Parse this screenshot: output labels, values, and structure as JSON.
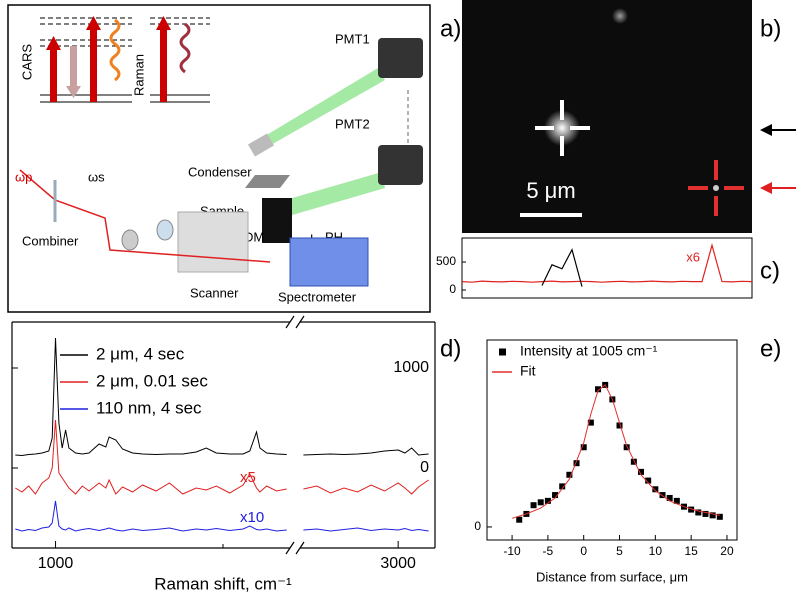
{
  "panel_labels": [
    "a)",
    "b)",
    "c)",
    "d)",
    "e)"
  ],
  "diagram": {
    "cars": "CARS",
    "raman": "Raman",
    "pmt1": "PMT1",
    "pmt2": "PMT2",
    "condenser": "Condenser",
    "sample": "Sample",
    "dm": "DM",
    "lens": "L",
    "pinhole": "PH",
    "combiner": "Combiner",
    "omega_p": "ωp",
    "omega_s": "ωs",
    "scanner": "Scanner",
    "spectrometer": "Spectrometer"
  },
  "image": {
    "scalebar": "5 μm"
  },
  "chart_data": [
    {
      "type": "line",
      "series": [
        {
          "color": "#000000",
          "values": [
            null,
            null,
            null,
            null,
            null,
            null,
            null,
            null,
            80,
            450,
            380,
            720,
            60,
            null,
            null,
            null,
            null,
            null,
            null,
            null,
            null,
            null,
            null,
            null,
            null,
            null,
            null,
            null,
            null,
            null
          ]
        },
        {
          "color": "#e02020",
          "values": [
            150,
            140,
            160,
            150,
            145,
            155,
            150,
            140,
            150,
            160,
            145,
            150,
            155,
            150,
            140,
            150,
            155,
            145,
            150,
            160,
            150,
            145,
            155,
            150,
            150,
            800,
            150,
            145,
            155,
            150
          ]
        }
      ],
      "ylim": [
        -143,
        930
      ],
      "yticks": [
        0,
        500
      ],
      "annotations": [
        "x6"
      ]
    },
    {
      "type": "line",
      "xlabel": "Raman shift, cm⁻¹",
      "x": [
        880,
        900,
        920,
        940,
        960,
        980,
        990,
        1000,
        1010,
        1020,
        1030,
        1040,
        1060,
        1080,
        1100,
        1130,
        1150,
        1160,
        1180,
        1200,
        1230,
        1260,
        1300,
        1340,
        1380,
        1420,
        1450,
        1480,
        1520,
        1560,
        1580,
        1600,
        1610,
        1630,
        1660,
        1690,
        2720,
        2760,
        2800,
        2840,
        2880,
        2920,
        2960,
        3000,
        3020,
        3040,
        3060,
        3090
      ],
      "series": [
        {
          "name": "2 μm, 4 sec",
          "color": "#000000",
          "values": [
            130,
            125,
            135,
            140,
            150,
            170,
            300,
            1300,
            450,
            200,
            380,
            200,
            150,
            140,
            150,
            240,
            210,
            310,
            280,
            190,
            150,
            140,
            135,
            140,
            140,
            160,
            200,
            150,
            140,
            140,
            170,
            360,
            200,
            150,
            140,
            135,
            130,
            135,
            140,
            135,
            140,
            150,
            170,
            180,
            150,
            200,
            130,
            140
          ]
        },
        {
          "name": "2 μm, 0.01 sec",
          "color": "#e02020",
          "values": [
            -200,
            -240,
            -180,
            -260,
            -150,
            -100,
            0,
            480,
            -50,
            -100,
            -150,
            -200,
            -260,
            -180,
            -230,
            -150,
            -200,
            -120,
            -260,
            -190,
            -240,
            -170,
            -230,
            -150,
            -260,
            -200,
            -220,
            -180,
            -250,
            -170,
            -60,
            -200,
            -240,
            -180,
            -230,
            -210,
            -210,
            -180,
            -250,
            -200,
            -240,
            -170,
            -230,
            -150,
            -200,
            -260,
            -190,
            -120
          ]
        },
        {
          "name": "110 nm, 4 sec",
          "color": "#2020e0",
          "values": [
            -610,
            -630,
            -615,
            -625,
            -600,
            -590,
            -550,
            -330,
            -580,
            -610,
            -620,
            -600,
            -630,
            -615,
            -605,
            -625,
            -610,
            -600,
            -620,
            -630,
            -610,
            -625,
            -615,
            -600,
            -630,
            -610,
            -620,
            -605,
            -625,
            -610,
            -580,
            -615,
            -620,
            -610,
            -630,
            -620,
            -620,
            -610,
            -630,
            -615,
            -600,
            -625,
            -610,
            -620,
            -605,
            -625,
            -615,
            -630
          ]
        }
      ],
      "xlim_segments": [
        [
          870,
          1700
        ],
        [
          2710,
          3100
        ]
      ],
      "xticks": [
        1000,
        3000
      ],
      "xminor_ticks": [
        1500
      ],
      "ylim": [
        -800,
        1460
      ],
      "yticks": [
        0,
        1000
      ],
      "annotations": [
        {
          "text": "x5",
          "color": "#e02020"
        },
        {
          "text": "x10",
          "color": "#2020e0"
        }
      ]
    },
    {
      "type": "scatter",
      "xlabel": "Distance from surface, μm",
      "series": [
        {
          "name": "Intensity at 1005 cm⁻¹",
          "type": "scatter",
          "color": "#000000",
          "x": [
            -9,
            -8,
            -7,
            -6,
            -5,
            -4,
            -3,
            -2,
            -1,
            0,
            1,
            2,
            3,
            4,
            5,
            6,
            7,
            8,
            9,
            10,
            11,
            12,
            13,
            14,
            15,
            16,
            17,
            18,
            19
          ],
          "values": [
            0.05,
            0.09,
            0.15,
            0.17,
            0.18,
            0.22,
            0.28,
            0.36,
            0.44,
            0.55,
            0.72,
            0.95,
            0.98,
            0.88,
            0.7,
            0.55,
            0.45,
            0.38,
            0.32,
            0.26,
            0.22,
            0.2,
            0.18,
            0.14,
            0.12,
            0.1,
            0.09,
            0.08,
            0.07
          ]
        },
        {
          "name": "Fit",
          "type": "line",
          "color": "#e03030",
          "x": [
            -10,
            -8,
            -6,
            -4,
            -2,
            0,
            1,
            2,
            3,
            4,
            5,
            6,
            8,
            10,
            12,
            14,
            16,
            18,
            19
          ],
          "values": [
            0.06,
            0.09,
            0.13,
            0.2,
            0.33,
            0.58,
            0.78,
            0.94,
            0.98,
            0.88,
            0.72,
            0.56,
            0.36,
            0.25,
            0.18,
            0.14,
            0.11,
            0.09,
            0.08
          ]
        }
      ],
      "xlim": [
        -13.5,
        21.4
      ],
      "ylim": [
        -0.09,
        1.29
      ],
      "xticks": [
        -10,
        -5,
        0,
        5,
        10,
        15,
        20
      ],
      "yticks": [
        0
      ]
    }
  ]
}
